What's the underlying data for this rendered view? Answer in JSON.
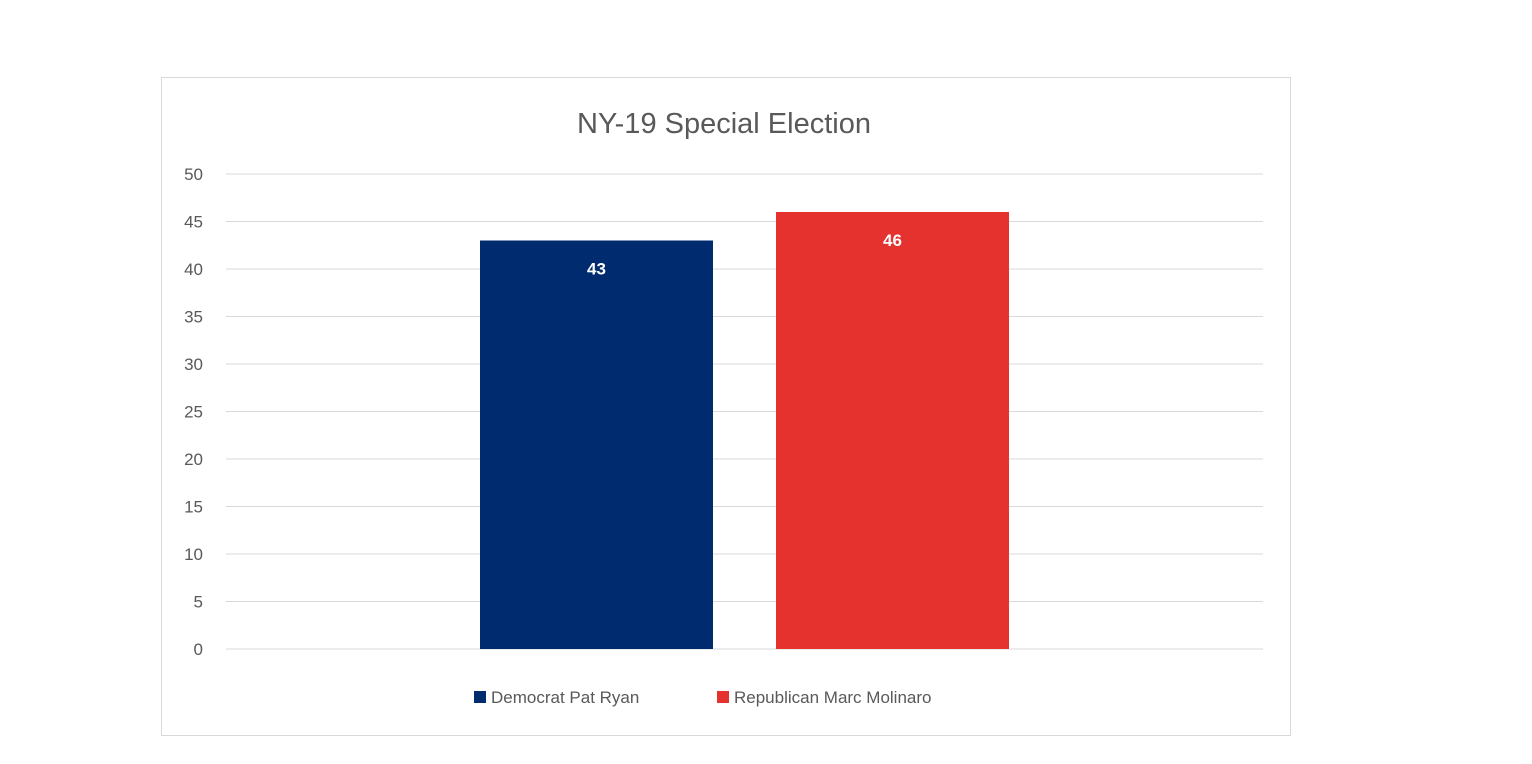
{
  "chart_data": {
    "type": "bar",
    "title": "NY-19 Special Election",
    "xlabel": "",
    "ylabel": "",
    "ylim": [
      0,
      50
    ],
    "ytick_step": 5,
    "yticks": [
      "0",
      "5",
      "10",
      "15",
      "20",
      "25",
      "30",
      "35",
      "40",
      "45",
      "50"
    ],
    "grid": true,
    "legend_position": "bottom",
    "series": [
      {
        "name": "Democrat Pat Ryan",
        "values": [
          43
        ],
        "color": "#002b6e"
      },
      {
        "name": "Republican Marc Molinaro",
        "values": [
          46
        ],
        "color": "#e5322e"
      }
    ],
    "data_labels": [
      "43",
      "46"
    ]
  }
}
